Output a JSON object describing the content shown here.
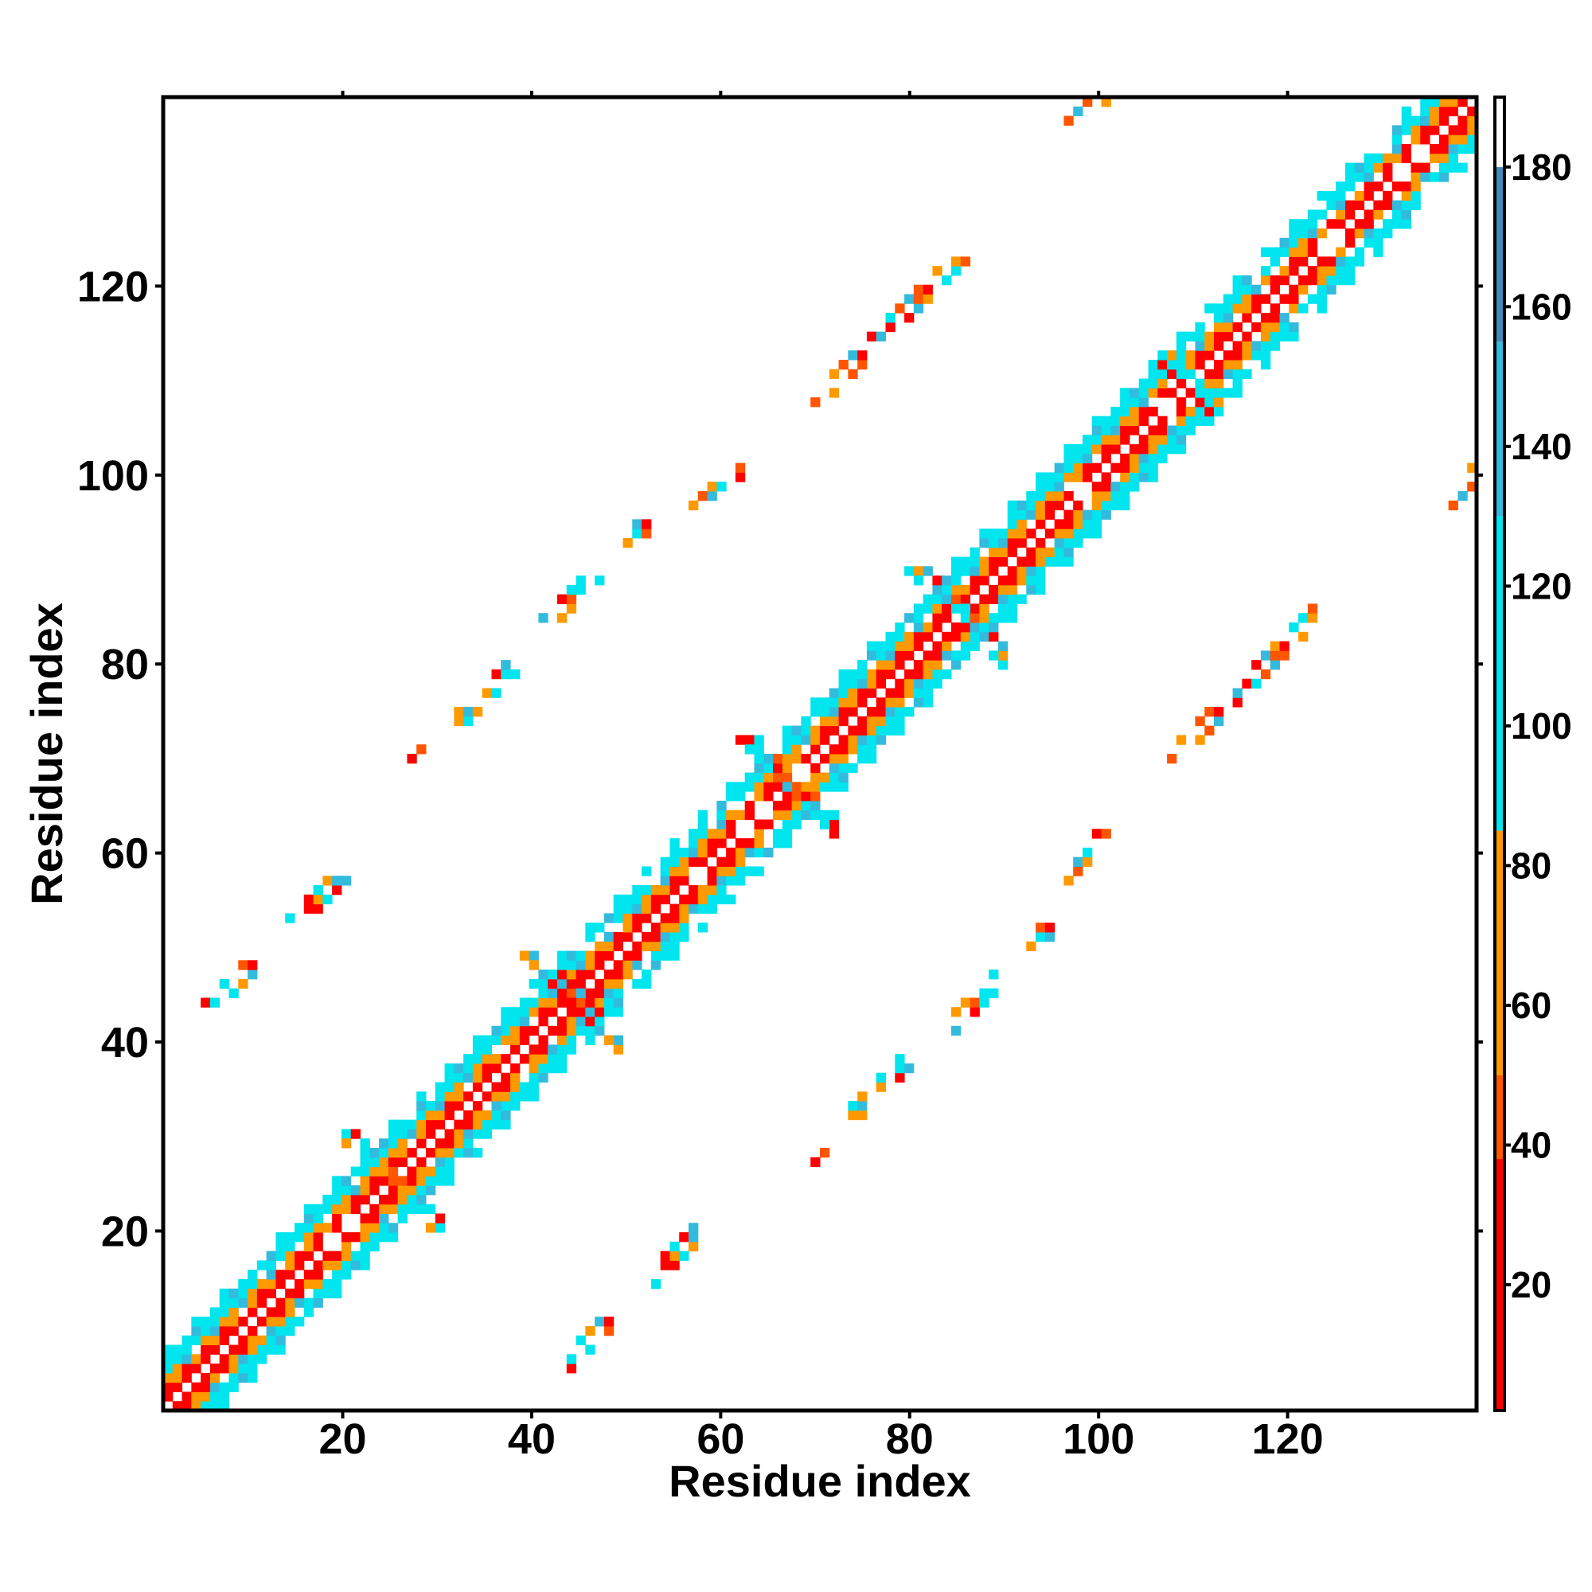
{
  "chart_data": {
    "type": "heatmap",
    "title": "",
    "xlabel": "Residue index",
    "ylabel": "Residue index",
    "xlim": [
      1,
      140
    ],
    "ylim": [
      1,
      140
    ],
    "x_ticks": [
      20,
      40,
      60,
      80,
      100,
      120
    ],
    "y_ticks": [
      20,
      40,
      60,
      80,
      100,
      120
    ],
    "colorbar": {
      "range": [
        2,
        190
      ],
      "ticks": [
        20,
        40,
        60,
        80,
        100,
        120,
        140,
        160,
        180
      ],
      "color_bands": [
        {
          "from": 2,
          "to": 38,
          "color": "#ff0000"
        },
        {
          "from": 38,
          "to": 50,
          "color": "#ff5500"
        },
        {
          "from": 50,
          "to": 85,
          "color": "#ff9900"
        },
        {
          "from": 85,
          "to": 130,
          "color": "#00e5ee"
        },
        {
          "from": 130,
          "to": 155,
          "color": "#33bbdd"
        },
        {
          "from": 155,
          "to": 180,
          "color": "#4488bb"
        },
        {
          "from": 180,
          "to": 190,
          "color": "#ffffff"
        }
      ]
    },
    "grid": false,
    "symmetric": true,
    "diagonal_band": {
      "from": 1,
      "to": 140,
      "half_width": 6
    },
    "cross_contacts": [
      {
        "i_start": 5,
        "j_start": 43,
        "length": 6,
        "direction": "parallel"
      },
      {
        "i_start": 15,
        "j_start": 53,
        "length": 5,
        "direction": "parallel"
      },
      {
        "i_start": 28,
        "j_start": 70,
        "length": 11,
        "direction": "parallel"
      },
      {
        "i_start": 42,
        "j_start": 85,
        "length": 5,
        "direction": "parallel"
      },
      {
        "i_start": 50,
        "j_start": 93,
        "length": 3,
        "direction": "parallel"
      },
      {
        "i_start": 58,
        "j_start": 97,
        "length": 5,
        "direction": "parallel"
      },
      {
        "i_start": 70,
        "j_start": 108,
        "length": 16,
        "direction": "parallel"
      },
      {
        "i_start": 98,
        "j_start": 138,
        "length": 3,
        "direction": "parallel"
      },
      {
        "i_start": 20,
        "j_start": 30,
        "length": 7,
        "direction": "cross"
      },
      {
        "i_start": 40,
        "j_start": 49,
        "length": 7,
        "direction": "cross"
      },
      {
        "i_start": 63,
        "j_start": 72,
        "length": 8,
        "direction": "cross"
      },
      {
        "i_start": 81,
        "j_start": 90,
        "length": 8,
        "direction": "cross"
      },
      {
        "i_start": 106,
        "j_start": 114,
        "length": 8,
        "direction": "cross"
      }
    ]
  }
}
